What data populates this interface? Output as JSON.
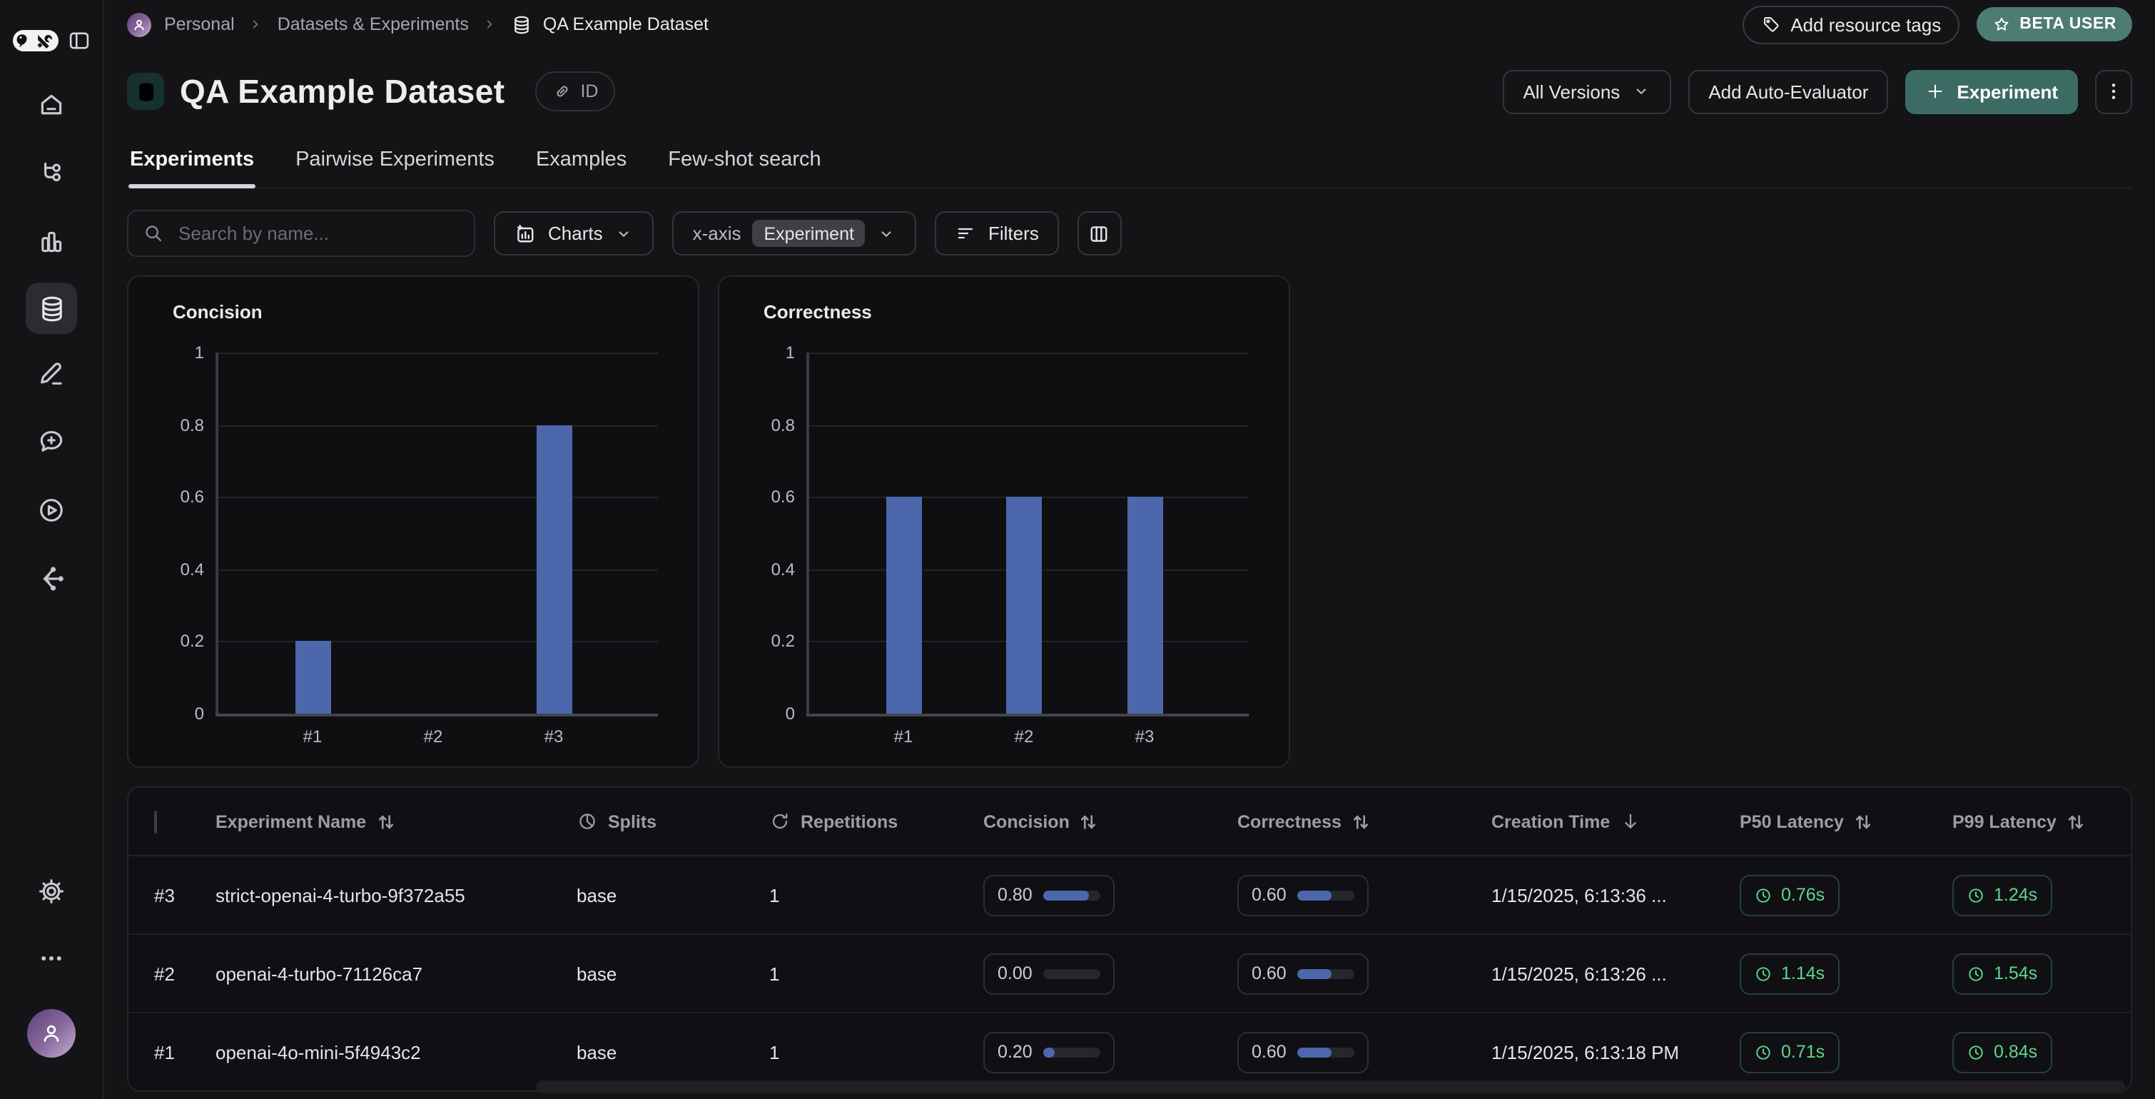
{
  "breadcrumb": {
    "workspace": "Personal",
    "section": "Datasets & Experiments",
    "current": "QA Example Dataset"
  },
  "topbar": {
    "add_resource_tags": "Add resource tags",
    "beta_badge": "BETA USER"
  },
  "header": {
    "title": "QA Example Dataset",
    "id_button": "ID",
    "all_versions": "All Versions",
    "add_auto_evaluator": "Add Auto-Evaluator",
    "experiment_button": "Experiment"
  },
  "tabs": {
    "items": [
      {
        "label": "Experiments",
        "active": true
      },
      {
        "label": "Pairwise Experiments",
        "active": false
      },
      {
        "label": "Examples",
        "active": false
      },
      {
        "label": "Few-shot search",
        "active": false
      }
    ]
  },
  "toolbar": {
    "search_placeholder": "Search by name...",
    "charts": "Charts",
    "xaxis_label": "x-axis",
    "xaxis_value": "Experiment",
    "filters": "Filters"
  },
  "chart_data": [
    {
      "type": "bar",
      "title": "Concision",
      "categories": [
        "#1",
        "#2",
        "#3"
      ],
      "values": [
        0.2,
        0,
        0.8
      ],
      "ylim": [
        0,
        1
      ],
      "yticks": [
        0,
        0.2,
        0.4,
        0.6,
        0.8,
        1
      ],
      "grid": true,
      "legend": "none",
      "bar_color": "#4C67AB"
    },
    {
      "type": "bar",
      "title": "Correctness",
      "categories": [
        "#1",
        "#2",
        "#3"
      ],
      "values": [
        0.6,
        0.6,
        0.6
      ],
      "ylim": [
        0,
        1
      ],
      "yticks": [
        0,
        0.2,
        0.4,
        0.6,
        0.8,
        1
      ],
      "grid": true,
      "legend": "none",
      "bar_color": "#4C67AB"
    }
  ],
  "table": {
    "columns": [
      {
        "label": "",
        "control": "select-all-checkbox"
      },
      {
        "label": "Experiment Name",
        "sort": "sortable"
      },
      {
        "label": "Splits",
        "icon": "pie-chart"
      },
      {
        "label": "Repetitions",
        "icon": "refresh"
      },
      {
        "label": "Concision",
        "sort": "sortable"
      },
      {
        "label": "Correctness",
        "sort": "sortable"
      },
      {
        "label": "Creation Time",
        "sort": "desc"
      },
      {
        "label": "P50 Latency",
        "sort": "sortable"
      },
      {
        "label": "P99 Latency",
        "sort": "sortable"
      }
    ],
    "rows": [
      {
        "index": "#3",
        "name": "strict-openai-4-turbo-9f372a55",
        "splits": "base",
        "repetitions": "1",
        "concision": {
          "display": "0.80",
          "fraction": 0.8
        },
        "correctness": {
          "display": "0.60",
          "fraction": 0.6
        },
        "creation_time": "1/15/2025, 6:13:36 ...",
        "p50_latency": "0.76s",
        "p99_latency": "1.24s"
      },
      {
        "index": "#2",
        "name": "openai-4-turbo-71126ca7",
        "splits": "base",
        "repetitions": "1",
        "concision": {
          "display": "0.00",
          "fraction": 0
        },
        "correctness": {
          "display": "0.60",
          "fraction": 0.6
        },
        "creation_time": "1/15/2025, 6:13:26 ...",
        "p50_latency": "1.14s",
        "p99_latency": "1.54s"
      },
      {
        "index": "#1",
        "name": "openai-4o-mini-5f4943c2",
        "splits": "base",
        "repetitions": "1",
        "concision": {
          "display": "0.20",
          "fraction": 0.2
        },
        "correctness": {
          "display": "0.60",
          "fraction": 0.6
        },
        "creation_time": "1/15/2025, 6:13:18 PM",
        "p50_latency": "0.71s",
        "p99_latency": "0.84s"
      }
    ]
  },
  "icons": {
    "logo": "langsmith-parrot-tools-logo",
    "sidebar": [
      "panel-toggle",
      "home",
      "trace-tree",
      "bar-chart",
      "database",
      "pencil",
      "chat-plus",
      "play-circle",
      "share-nodes",
      "gear",
      "ellipsis",
      "user-avatar"
    ],
    "misc": [
      "search",
      "chevron-down",
      "filter",
      "columns",
      "tag",
      "star",
      "link",
      "plus",
      "kebab",
      "pie-chart",
      "refresh",
      "sort-up-down",
      "arrow-down",
      "clock"
    ]
  },
  "colors": {
    "accent_teal": "#3C6B64",
    "badge_teal": "#4D7C72",
    "bar_blue": "#4C67AB",
    "latency_green": "#5FD68B",
    "avatar_purple": "#7B5B94",
    "background": "#141417"
  }
}
